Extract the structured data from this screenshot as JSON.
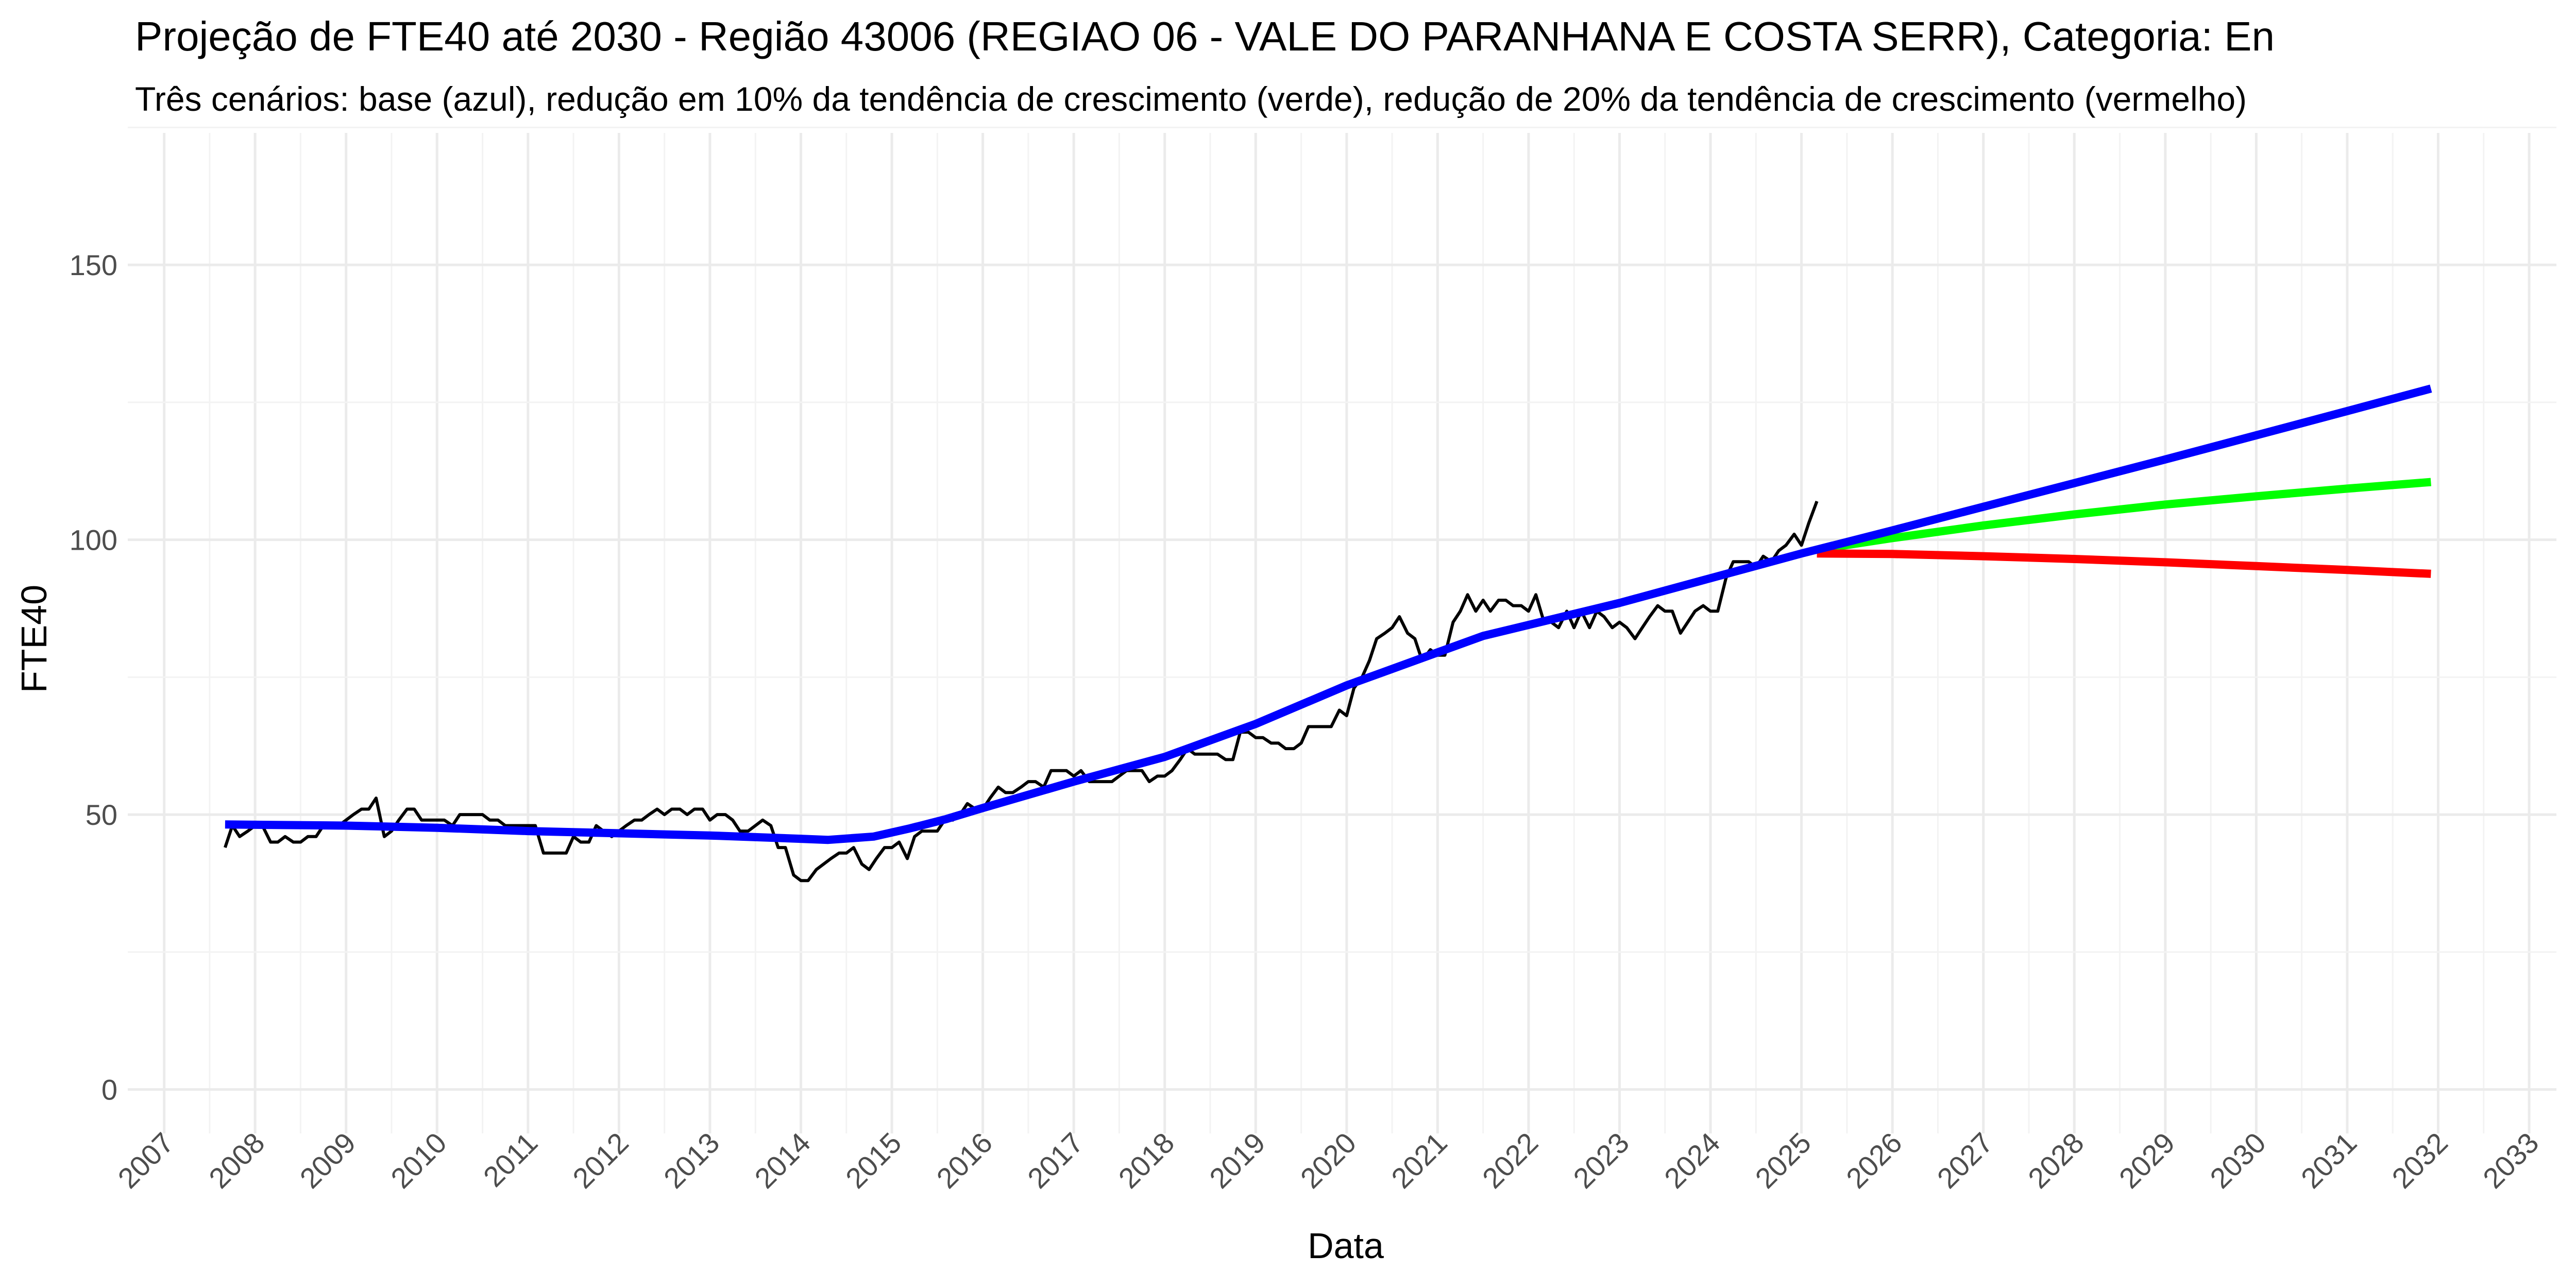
{
  "chart_data": {
    "type": "line",
    "title": "Projeção de FTE40 até 2030 - Região 43006 (REGIAO 06 - VALE DO PARANHANA E COSTA SERR), Categoria: En",
    "subtitle": "Três cenários: base (azul), redução em 10% da tendência de crescimento (verde), redução de 20% da tendência de crescimento (vermelho)",
    "xlabel": "Data",
    "ylabel": "FTE40",
    "xlim": [
      2006.6,
      2033.3
    ],
    "ylim": [
      -8,
      174
    ],
    "x_ticks": [
      2007,
      2008,
      2009,
      2010,
      2011,
      2012,
      2013,
      2014,
      2015,
      2016,
      2017,
      2018,
      2019,
      2020,
      2021,
      2022,
      2023,
      2024,
      2025,
      2026,
      2027,
      2028,
      2029,
      2030,
      2031,
      2032,
      2033
    ],
    "y_ticks": [
      0,
      50,
      100,
      150
    ],
    "grid": true,
    "legend": "none",
    "series": [
      {
        "color": "#000000",
        "points": [
          [
            2007.67,
            44
          ],
          [
            2007.75,
            48
          ],
          [
            2007.83,
            46
          ],
          [
            2007.92,
            47
          ],
          [
            2008.0,
            48
          ],
          [
            2008.08,
            48
          ],
          [
            2008.17,
            45
          ],
          [
            2008.25,
            45
          ],
          [
            2008.33,
            46
          ],
          [
            2008.42,
            45
          ],
          [
            2008.5,
            45
          ],
          [
            2008.58,
            46
          ],
          [
            2008.67,
            46
          ],
          [
            2008.75,
            48
          ],
          [
            2008.83,
            48
          ],
          [
            2008.92,
            48
          ],
          [
            2009.0,
            49
          ],
          [
            2009.08,
            50
          ],
          [
            2009.17,
            51
          ],
          [
            2009.25,
            51
          ],
          [
            2009.33,
            53
          ],
          [
            2009.42,
            46
          ],
          [
            2009.5,
            47
          ],
          [
            2009.58,
            49
          ],
          [
            2009.67,
            51
          ],
          [
            2009.75,
            51
          ],
          [
            2009.83,
            49
          ],
          [
            2009.92,
            49
          ],
          [
            2010.0,
            49
          ],
          [
            2010.08,
            49
          ],
          [
            2010.17,
            48
          ],
          [
            2010.25,
            50
          ],
          [
            2010.33,
            50
          ],
          [
            2010.42,
            50
          ],
          [
            2010.5,
            50
          ],
          [
            2010.58,
            49
          ],
          [
            2010.67,
            49
          ],
          [
            2010.75,
            48
          ],
          [
            2010.83,
            48
          ],
          [
            2010.92,
            48
          ],
          [
            2011.0,
            48
          ],
          [
            2011.08,
            48
          ],
          [
            2011.17,
            43
          ],
          [
            2011.25,
            43
          ],
          [
            2011.33,
            43
          ],
          [
            2011.42,
            43
          ],
          [
            2011.5,
            46
          ],
          [
            2011.58,
            45
          ],
          [
            2011.67,
            45
          ],
          [
            2011.75,
            48
          ],
          [
            2011.83,
            47
          ],
          [
            2011.92,
            46
          ],
          [
            2012.0,
            47
          ],
          [
            2012.08,
            48
          ],
          [
            2012.17,
            49
          ],
          [
            2012.25,
            49
          ],
          [
            2012.33,
            50
          ],
          [
            2012.42,
            51
          ],
          [
            2012.5,
            50
          ],
          [
            2012.58,
            51
          ],
          [
            2012.67,
            51
          ],
          [
            2012.75,
            50
          ],
          [
            2012.83,
            51
          ],
          [
            2012.92,
            51
          ],
          [
            2013.0,
            49
          ],
          [
            2013.08,
            50
          ],
          [
            2013.17,
            50
          ],
          [
            2013.25,
            49
          ],
          [
            2013.33,
            47
          ],
          [
            2013.42,
            47
          ],
          [
            2013.5,
            48
          ],
          [
            2013.58,
            49
          ],
          [
            2013.67,
            48
          ],
          [
            2013.75,
            44
          ],
          [
            2013.83,
            44
          ],
          [
            2013.92,
            39
          ],
          [
            2014.0,
            38
          ],
          [
            2014.08,
            38
          ],
          [
            2014.17,
            40
          ],
          [
            2014.25,
            41
          ],
          [
            2014.33,
            42
          ],
          [
            2014.42,
            43
          ],
          [
            2014.5,
            43
          ],
          [
            2014.58,
            44
          ],
          [
            2014.67,
            41
          ],
          [
            2014.75,
            40
          ],
          [
            2014.83,
            42
          ],
          [
            2014.92,
            44
          ],
          [
            2015.0,
            44
          ],
          [
            2015.08,
            45
          ],
          [
            2015.17,
            42
          ],
          [
            2015.25,
            46
          ],
          [
            2015.33,
            47
          ],
          [
            2015.42,
            47
          ],
          [
            2015.5,
            47
          ],
          [
            2015.58,
            49
          ],
          [
            2015.67,
            49
          ],
          [
            2015.75,
            50
          ],
          [
            2015.83,
            52
          ],
          [
            2015.92,
            51
          ],
          [
            2016.0,
            51
          ],
          [
            2016.08,
            53
          ],
          [
            2016.17,
            55
          ],
          [
            2016.25,
            54
          ],
          [
            2016.33,
            54
          ],
          [
            2016.42,
            55
          ],
          [
            2016.5,
            56
          ],
          [
            2016.58,
            56
          ],
          [
            2016.67,
            55
          ],
          [
            2016.75,
            58
          ],
          [
            2016.83,
            58
          ],
          [
            2016.92,
            58
          ],
          [
            2017.0,
            57
          ],
          [
            2017.08,
            58
          ],
          [
            2017.17,
            56
          ],
          [
            2017.25,
            56
          ],
          [
            2017.33,
            56
          ],
          [
            2017.42,
            56
          ],
          [
            2017.5,
            57
          ],
          [
            2017.58,
            58
          ],
          [
            2017.67,
            58
          ],
          [
            2017.75,
            58
          ],
          [
            2017.83,
            56
          ],
          [
            2017.92,
            57
          ],
          [
            2018.0,
            57
          ],
          [
            2018.08,
            58
          ],
          [
            2018.17,
            60
          ],
          [
            2018.25,
            62
          ],
          [
            2018.33,
            61
          ],
          [
            2018.42,
            61
          ],
          [
            2018.5,
            61
          ],
          [
            2018.58,
            61
          ],
          [
            2018.67,
            60
          ],
          [
            2018.75,
            60
          ],
          [
            2018.83,
            65
          ],
          [
            2018.92,
            65
          ],
          [
            2019.0,
            64
          ],
          [
            2019.08,
            64
          ],
          [
            2019.17,
            63
          ],
          [
            2019.25,
            63
          ],
          [
            2019.33,
            62
          ],
          [
            2019.42,
            62
          ],
          [
            2019.5,
            63
          ],
          [
            2019.58,
            66
          ],
          [
            2019.67,
            66
          ],
          [
            2019.75,
            66
          ],
          [
            2019.83,
            66
          ],
          [
            2019.92,
            69
          ],
          [
            2020.0,
            68
          ],
          [
            2020.08,
            73
          ],
          [
            2020.17,
            75
          ],
          [
            2020.25,
            78
          ],
          [
            2020.33,
            82
          ],
          [
            2020.42,
            83
          ],
          [
            2020.5,
            84
          ],
          [
            2020.58,
            86
          ],
          [
            2020.67,
            83
          ],
          [
            2020.75,
            82
          ],
          [
            2020.83,
            78
          ],
          [
            2020.92,
            80
          ],
          [
            2021.0,
            79
          ],
          [
            2021.08,
            79
          ],
          [
            2021.17,
            85
          ],
          [
            2021.25,
            87
          ],
          [
            2021.33,
            90
          ],
          [
            2021.42,
            87
          ],
          [
            2021.5,
            89
          ],
          [
            2021.58,
            87
          ],
          [
            2021.67,
            89
          ],
          [
            2021.75,
            89
          ],
          [
            2021.83,
            88
          ],
          [
            2021.92,
            88
          ],
          [
            2022.0,
            87
          ],
          [
            2022.08,
            90
          ],
          [
            2022.17,
            85
          ],
          [
            2022.25,
            85
          ],
          [
            2022.33,
            84
          ],
          [
            2022.42,
            87
          ],
          [
            2022.5,
            84
          ],
          [
            2022.58,
            87
          ],
          [
            2022.67,
            84
          ],
          [
            2022.75,
            87
          ],
          [
            2022.83,
            86
          ],
          [
            2022.92,
            84
          ],
          [
            2023.0,
            85
          ],
          [
            2023.08,
            84
          ],
          [
            2023.17,
            82
          ],
          [
            2023.25,
            84
          ],
          [
            2023.33,
            86
          ],
          [
            2023.42,
            88
          ],
          [
            2023.5,
            87
          ],
          [
            2023.58,
            87
          ],
          [
            2023.67,
            83
          ],
          [
            2023.75,
            85
          ],
          [
            2023.83,
            87
          ],
          [
            2023.92,
            88
          ],
          [
            2024.0,
            87
          ],
          [
            2024.08,
            87
          ],
          [
            2024.17,
            93
          ],
          [
            2024.25,
            96
          ],
          [
            2024.33,
            96
          ],
          [
            2024.42,
            96
          ],
          [
            2024.5,
            95
          ],
          [
            2024.58,
            97
          ],
          [
            2024.67,
            96
          ],
          [
            2024.75,
            98
          ],
          [
            2024.83,
            99
          ],
          [
            2024.92,
            101
          ],
          [
            2025.0,
            99
          ],
          [
            2025.08,
            103
          ],
          [
            2025.17,
            107
          ]
        ]
      },
      {
        "color": "#0000ff",
        "points": [
          [
            2007.67,
            48.2
          ],
          [
            2009.0,
            48.0
          ],
          [
            2010.0,
            47.6
          ],
          [
            2011.0,
            47.0
          ],
          [
            2012.0,
            46.6
          ],
          [
            2013.0,
            46.2
          ],
          [
            2014.0,
            45.6
          ],
          [
            2014.3,
            45.4
          ],
          [
            2014.8,
            46.0
          ],
          [
            2015.2,
            47.5
          ],
          [
            2015.6,
            49.2
          ],
          [
            2016.0,
            51.2
          ],
          [
            2017.0,
            56.0
          ],
          [
            2018.0,
            60.5
          ],
          [
            2019.0,
            66.5
          ],
          [
            2020.0,
            73.5
          ],
          [
            2021.0,
            79.5
          ],
          [
            2021.5,
            82.5
          ],
          [
            2022.0,
            84.5
          ],
          [
            2023.0,
            88.5
          ],
          [
            2024.0,
            93.0
          ],
          [
            2025.0,
            97.5
          ],
          [
            2025.17,
            98.2
          ],
          [
            2026.0,
            101.7
          ],
          [
            2027.0,
            106.0
          ],
          [
            2028.0,
            110.3
          ],
          [
            2029.0,
            114.6
          ],
          [
            2030.0,
            119.0
          ],
          [
            2031.0,
            123.4
          ],
          [
            2031.92,
            127.5
          ]
        ]
      },
      {
        "color": "#00ff00",
        "points": [
          [
            2025.17,
            98.2
          ],
          [
            2026.0,
            100.3
          ],
          [
            2027.0,
            102.6
          ],
          [
            2028.0,
            104.6
          ],
          [
            2029.0,
            106.4
          ],
          [
            2030.0,
            107.9
          ],
          [
            2031.0,
            109.3
          ],
          [
            2031.92,
            110.5
          ]
        ]
      },
      {
        "color": "#ff0000",
        "points": [
          [
            2025.17,
            97.5
          ],
          [
            2026.0,
            97.4
          ],
          [
            2027.0,
            97.0
          ],
          [
            2028.0,
            96.5
          ],
          [
            2029.0,
            95.9
          ],
          [
            2030.0,
            95.2
          ],
          [
            2031.0,
            94.5
          ],
          [
            2031.92,
            93.8
          ]
        ]
      }
    ]
  }
}
